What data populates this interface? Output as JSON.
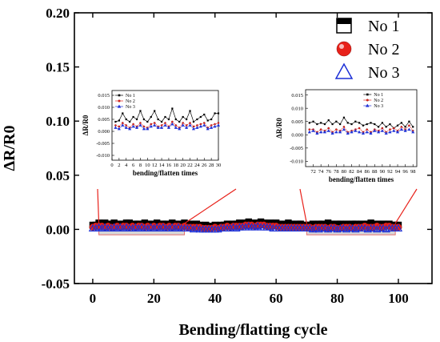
{
  "chart_data": [
    {
      "type": "scatter",
      "title": "",
      "xlabel": "Bending/flatting cycle",
      "ylabel": "ΔR/R0",
      "xlim": [
        -6,
        111
      ],
      "ylim": [
        -0.05,
        0.2
      ],
      "xticks": [
        "0",
        "20",
        "40",
        "60",
        "80",
        "100"
      ],
      "yticks": [
        "-0.05",
        "0.00",
        "0.05",
        "0.10",
        "0.15",
        "0.20"
      ],
      "legend_position": "top-right",
      "highlight_ranges": [
        [
          2,
          30
        ],
        [
          70,
          99
        ]
      ],
      "series": [
        {
          "name": "No 1",
          "marker": "square",
          "color": "#000000",
          "values": [
            0.004,
            0.004,
            0.006,
            0.005,
            0.006,
            0.005,
            0.004,
            0.006,
            0.005,
            0.004,
            0.005,
            0.006,
            0.006,
            0.004,
            0.005,
            0.005,
            0.004,
            0.006,
            0.005,
            0.004,
            0.005,
            0.006,
            0.004,
            0.005,
            0.005,
            0.004,
            0.006,
            0.005,
            0.004,
            0.005,
            0.006,
            0.004,
            0.005,
            0.004,
            0.005,
            0.004,
            0.003,
            0.004,
            0.003,
            0.003,
            0.004,
            0.003,
            0.004,
            0.004,
            0.005,
            0.004,
            0.005,
            0.005,
            0.006,
            0.005,
            0.006,
            0.007,
            0.006,
            0.005,
            0.006,
            0.007,
            0.006,
            0.005,
            0.006,
            0.005,
            0.006,
            0.005,
            0.004,
            0.005,
            0.006,
            0.005,
            0.004,
            0.005,
            0.005,
            0.004,
            0.004,
            0.004,
            0.005,
            0.004,
            0.005,
            0.005,
            0.004,
            0.006,
            0.005,
            0.004,
            0.005,
            0.005,
            0.004,
            0.005,
            0.004,
            0.005,
            0.005,
            0.004,
            0.005,
            0.004,
            0.005,
            0.006,
            0.004,
            0.005,
            0.004,
            0.005,
            0.004,
            0.005,
            0.004,
            0.004,
            0.004
          ]
        },
        {
          "name": "No 2",
          "marker": "circle",
          "color": "#e8211a",
          "values": [
            0.002,
            0.003,
            0.003,
            0.003,
            0.002,
            0.003,
            0.002,
            0.002,
            0.003,
            0.002,
            0.003,
            0.003,
            0.002,
            0.003,
            0.002,
            0.003,
            0.003,
            0.002,
            0.003,
            0.002,
            0.003,
            0.002,
            0.003,
            0.003,
            0.002,
            0.003,
            0.002,
            0.003,
            0.003,
            0.002,
            0.003,
            0.002,
            0.002,
            0.002,
            0.002,
            0.002,
            0.001,
            0.001,
            0.001,
            0.001,
            0.002,
            0.001,
            0.002,
            0.002,
            0.003,
            0.002,
            0.003,
            0.003,
            0.003,
            0.003,
            0.004,
            0.004,
            0.004,
            0.003,
            0.004,
            0.004,
            0.004,
            0.003,
            0.003,
            0.003,
            0.003,
            0.002,
            0.002,
            0.002,
            0.002,
            0.002,
            0.002,
            0.002,
            0.002,
            0.002,
            0.002,
            0.002,
            0.001,
            0.002,
            0.002,
            0.002,
            0.002,
            0.001,
            0.002,
            0.002,
            0.001,
            0.001,
            0.002,
            0.002,
            0.002,
            0.001,
            0.002,
            0.002,
            0.002,
            0.003,
            0.002,
            0.002,
            0.002,
            0.003,
            0.002,
            0.002,
            0.003,
            0.003,
            0.002,
            0.002,
            0.002
          ]
        },
        {
          "name": "No 3",
          "marker": "triangle",
          "color": "#1c2fd6",
          "values": [
            0.001,
            0.001,
            0.002,
            0.001,
            0.002,
            0.001,
            0.001,
            0.002,
            0.001,
            0.002,
            0.001,
            0.002,
            0.001,
            0.001,
            0.002,
            0.001,
            0.002,
            0.001,
            0.001,
            0.002,
            0.001,
            0.002,
            0.001,
            0.002,
            0.001,
            0.001,
            0.002,
            0.001,
            0.002,
            0.001,
            0.001,
            0.001,
            0.001,
            0.0,
            0.001,
            0.0,
            0.0,
            0.0,
            0.0,
            0.0,
            0.0,
            0.0,
            0.001,
            0.001,
            0.001,
            0.001,
            0.002,
            0.001,
            0.002,
            0.002,
            0.002,
            0.003,
            0.002,
            0.002,
            0.003,
            0.002,
            0.002,
            0.002,
            0.002,
            0.001,
            0.001,
            0.001,
            0.001,
            0.001,
            0.001,
            0.001,
            0.001,
            0.001,
            0.001,
            0.001,
            0.001,
            0.001,
            0.0,
            0.001,
            0.0,
            0.001,
            0.001,
            0.0,
            0.001,
            0.001,
            0.0,
            0.001,
            0.001,
            0.0,
            0.001,
            0.001,
            0.0,
            0.001,
            0.001,
            0.001,
            0.0,
            0.001,
            0.001,
            0.0,
            0.001,
            0.001,
            0.0,
            0.001,
            0.001,
            0.001,
            0.001
          ]
        }
      ]
    },
    {
      "type": "line",
      "title": "",
      "xlabel": "bending/flatten times",
      "ylabel": "ΔR/R0",
      "xlim": [
        0,
        30
      ],
      "ylim": [
        -0.012,
        0.017
      ],
      "xticks": [
        "0",
        "2",
        "4",
        "6",
        "8",
        "10",
        "12",
        "14",
        "16",
        "18",
        "20",
        "22",
        "24",
        "26",
        "28",
        "30"
      ],
      "yticks": [
        "-0.010",
        "-0.005",
        "0.000",
        "0.005",
        "0.010",
        "0.015"
      ],
      "legend_position": "top-left",
      "series": [
        {
          "name": "No 1",
          "x": [
            1,
            2,
            3,
            4,
            5,
            6,
            7,
            8,
            9,
            10,
            11,
            12,
            13,
            14,
            15,
            16,
            17,
            18,
            19,
            20,
            21,
            22,
            23,
            24,
            25,
            26,
            27,
            28,
            29,
            30
          ],
          "values": [
            0.004,
            0.0045,
            0.0075,
            0.005,
            0.004,
            0.006,
            0.005,
            0.0085,
            0.005,
            0.004,
            0.006,
            0.0085,
            0.005,
            0.004,
            0.006,
            0.005,
            0.0095,
            0.005,
            0.004,
            0.006,
            0.005,
            0.0085,
            0.004,
            0.005,
            0.006,
            0.007,
            0.0045,
            0.005,
            0.0075,
            0.0075
          ]
        },
        {
          "name": "No 2",
          "x": [
            1,
            2,
            3,
            4,
            5,
            6,
            7,
            8,
            9,
            10,
            11,
            12,
            13,
            14,
            15,
            16,
            17,
            18,
            19,
            20,
            21,
            22,
            23,
            24,
            25,
            26,
            27,
            28,
            29,
            30
          ],
          "values": [
            0.0025,
            0.002,
            0.0035,
            0.0025,
            0.0015,
            0.003,
            0.002,
            0.0035,
            0.002,
            0.0015,
            0.003,
            0.0035,
            0.002,
            0.0025,
            0.0035,
            0.002,
            0.004,
            0.0025,
            0.0015,
            0.0035,
            0.0025,
            0.0035,
            0.002,
            0.0025,
            0.003,
            0.0035,
            0.0015,
            0.0025,
            0.003,
            0.0035
          ]
        },
        {
          "name": "No 3",
          "x": [
            1,
            2,
            3,
            4,
            5,
            6,
            7,
            8,
            9,
            10,
            11,
            12,
            13,
            14,
            15,
            16,
            17,
            18,
            19,
            20,
            21,
            22,
            23,
            24,
            25,
            26,
            27,
            28,
            29,
            30
          ],
          "values": [
            0.0015,
            0.001,
            0.0025,
            0.0015,
            0.001,
            0.002,
            0.0015,
            0.0025,
            0.001,
            0.001,
            0.002,
            0.0025,
            0.0015,
            0.0015,
            0.0025,
            0.0015,
            0.003,
            0.0015,
            0.001,
            0.0025,
            0.0015,
            0.0025,
            0.001,
            0.0015,
            0.002,
            0.0025,
            0.001,
            0.0015,
            0.002,
            0.0025
          ]
        }
      ]
    },
    {
      "type": "line",
      "title": "",
      "xlabel": "bending/flatten times",
      "ylabel": "ΔR/R0",
      "xlim": [
        70,
        99
      ],
      "ylim": [
        -0.012,
        0.017
      ],
      "xticks": [
        "72",
        "74",
        "76",
        "78",
        "80",
        "82",
        "84",
        "86",
        "88",
        "90",
        "92",
        "94",
        "96",
        "98"
      ],
      "yticks": [
        "-0.010",
        "-0.005",
        "0.000",
        "0.005",
        "0.010",
        "0.015"
      ],
      "legend_position": "top-right",
      "series": [
        {
          "name": "No 1",
          "x": [
            71,
            72,
            73,
            74,
            75,
            76,
            77,
            78,
            79,
            80,
            81,
            82,
            83,
            84,
            85,
            86,
            87,
            88,
            89,
            90,
            91,
            92,
            93,
            94,
            95,
            96,
            97,
            98
          ],
          "values": [
            0.0045,
            0.005,
            0.004,
            0.0045,
            0.004,
            0.0055,
            0.004,
            0.005,
            0.004,
            0.0065,
            0.0045,
            0.004,
            0.005,
            0.0045,
            0.0035,
            0.004,
            0.0045,
            0.004,
            0.003,
            0.0045,
            0.003,
            0.004,
            0.0025,
            0.0035,
            0.0045,
            0.003,
            0.005,
            0.003
          ]
        },
        {
          "name": "No 2",
          "x": [
            71,
            72,
            73,
            74,
            75,
            76,
            77,
            78,
            79,
            80,
            81,
            82,
            83,
            84,
            85,
            86,
            87,
            88,
            89,
            90,
            91,
            92,
            93,
            94,
            95,
            96,
            97,
            98
          ],
          "values": [
            0.002,
            0.002,
            0.001,
            0.002,
            0.0015,
            0.0025,
            0.001,
            0.002,
            0.0015,
            0.003,
            0.001,
            0.0015,
            0.002,
            0.0025,
            0.001,
            0.002,
            0.001,
            0.002,
            0.0015,
            0.0025,
            0.001,
            0.002,
            0.0025,
            0.0015,
            0.003,
            0.002,
            0.0035,
            0.0015
          ]
        },
        {
          "name": "No 3",
          "x": [
            71,
            72,
            73,
            74,
            75,
            76,
            77,
            78,
            79,
            80,
            81,
            82,
            83,
            84,
            85,
            86,
            87,
            88,
            89,
            90,
            91,
            92,
            93,
            94,
            95,
            96,
            97,
            98
          ],
          "values": [
            0.001,
            0.0015,
            0.0005,
            0.001,
            0.001,
            0.0015,
            0.0005,
            0.001,
            0.001,
            0.002,
            0.0005,
            0.001,
            0.0015,
            0.001,
            0.0005,
            0.001,
            0.0005,
            0.0015,
            0.001,
            0.0015,
            0.0005,
            0.001,
            0.0015,
            0.001,
            0.002,
            0.0015,
            0.002,
            0.001
          ]
        }
      ]
    }
  ]
}
